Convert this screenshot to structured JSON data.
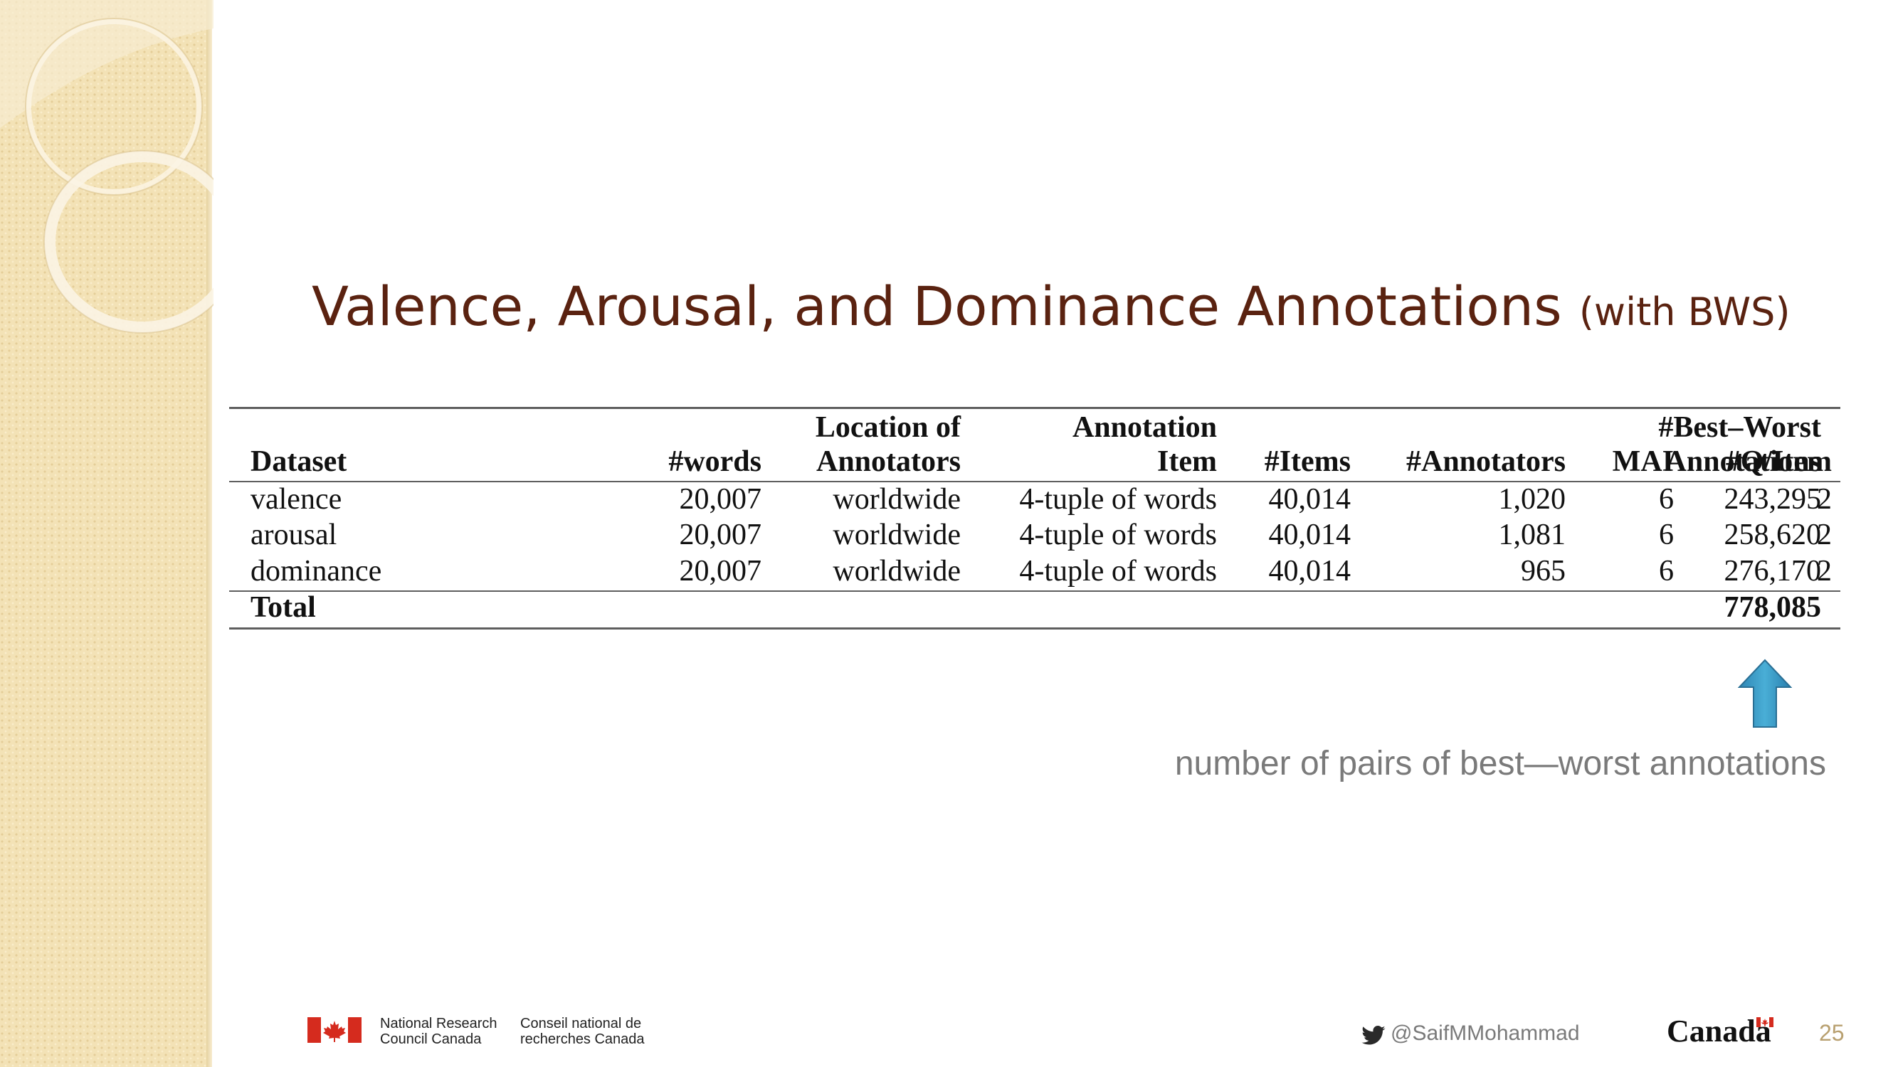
{
  "slide": {
    "title_main": "Valence, Arousal, and Dominance Annotations",
    "title_suffix": "(with BWS)",
    "page_number": "25",
    "note": "number of pairs of best—worst annotations"
  },
  "table": {
    "headers": {
      "dataset": "Dataset",
      "words": "#words",
      "location_line1": "Location of",
      "location_line2": "Annotators",
      "annotation_line1": "Annotation",
      "annotation_line2": "Item",
      "items": "#Items",
      "annotators": "#Annotators",
      "mai": "MAI",
      "q_item": "#Q/Item",
      "bw_line1": "#Best–Worst",
      "bw_line2": "Annotations"
    },
    "rows": [
      {
        "dataset": "valence",
        "words": "20,007",
        "location": "worldwide",
        "item": "4-tuple of words",
        "items": "40,014",
        "annotators": "1,020",
        "mai": "6",
        "q_item": "2",
        "bw": "243,295"
      },
      {
        "dataset": "arousal",
        "words": "20,007",
        "location": "worldwide",
        "item": "4-tuple of words",
        "items": "40,014",
        "annotators": "1,081",
        "mai": "6",
        "q_item": "2",
        "bw": "258,620"
      },
      {
        "dataset": "dominance",
        "words": "20,007",
        "location": "worldwide",
        "item": "4-tuple of words",
        "items": "40,014",
        "annotators": "965",
        "mai": "6",
        "q_item": "2",
        "bw": "276,170"
      }
    ],
    "total": {
      "label": "Total",
      "bw": "778,085"
    }
  },
  "footer": {
    "nrc_en_line1": "National Research",
    "nrc_en_line2": "Council Canada",
    "nrc_fr_line1": "Conseil national de",
    "nrc_fr_line2": "recherches Canada",
    "twitter_handle": "@SaifMMohammad",
    "canada_wordmark": "Canada"
  },
  "colors": {
    "title": "#5a2210",
    "arrow": "#3a9ac4",
    "note": "#7a7a7a",
    "page_number": "#b8a070",
    "sidebar": "#f3e2b6",
    "flag_red": "#d52b1e"
  },
  "icons": [
    "twitter-bird-icon",
    "canada-flag-icon",
    "up-arrow-icon"
  ]
}
